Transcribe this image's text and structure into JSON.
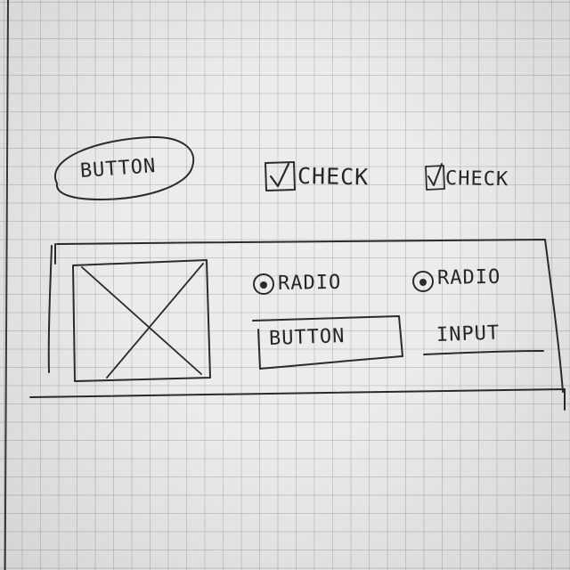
{
  "sketch": {
    "top_button": {
      "label": "BUTTON"
    },
    "checkboxes": [
      {
        "label": "CHECK",
        "checked": true
      },
      {
        "label": "CHECK",
        "checked": true
      }
    ],
    "panel": {
      "image_placeholder": "image-placeholder",
      "radios": [
        {
          "label": "RADIO",
          "selected": true
        },
        {
          "label": "RADIO",
          "selected": true
        }
      ],
      "button": {
        "label": "BUTTON"
      },
      "input": {
        "label": "INPUT"
      }
    }
  }
}
